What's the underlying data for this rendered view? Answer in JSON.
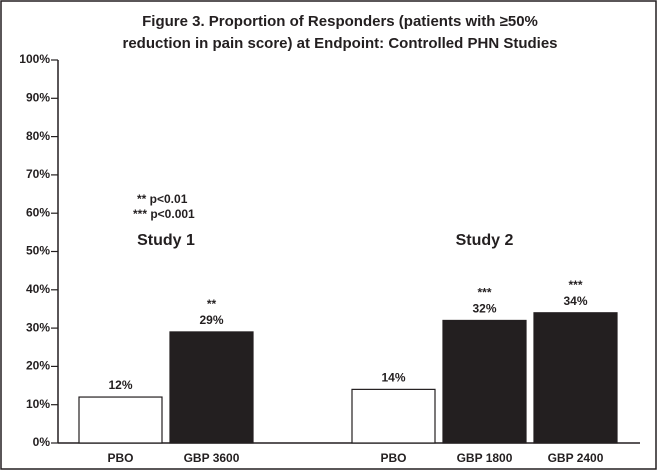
{
  "chart_data": {
    "type": "bar",
    "title": [
      "Figure 3. Proportion of Responders (patients with ≥50%",
      "reduction in pain score) at Endpoint: Controlled PHN Studies"
    ],
    "annotations": [
      "** p<0.01",
      "*** p<0.001"
    ],
    "groups": [
      {
        "name": "Study 1",
        "categories": [
          "PBO",
          "GBP 3600"
        ],
        "values": [
          12,
          29
        ],
        "value_labels": [
          "12%",
          "29%"
        ],
        "significance": [
          null,
          "**"
        ],
        "colors": [
          "#ffffff",
          "#231f20"
        ]
      },
      {
        "name": "Study 2",
        "categories": [
          "PBO",
          "GBP 1800",
          "GBP 2400"
        ],
        "values": [
          14,
          32,
          34
        ],
        "value_labels": [
          "14%",
          "32%",
          "34%"
        ],
        "significance": [
          null,
          "***",
          "***"
        ],
        "colors": [
          "#ffffff",
          "#231f20",
          "#231f20"
        ]
      }
    ],
    "ylim": [
      0,
      100
    ],
    "yticks": [
      {
        "value": 0,
        "label": "0%"
      },
      {
        "value": 10,
        "label": "10%"
      },
      {
        "value": 20,
        "label": "20%"
      },
      {
        "value": 30,
        "label": "30%"
      },
      {
        "value": 40,
        "label": "40%"
      },
      {
        "value": 50,
        "label": "50%"
      },
      {
        "value": 60,
        "label": "60%"
      },
      {
        "value": 70,
        "label": "70%"
      },
      {
        "value": 80,
        "label": "80%"
      },
      {
        "value": 90,
        "label": "90%"
      },
      {
        "value": 100,
        "label": "100%"
      }
    ]
  }
}
